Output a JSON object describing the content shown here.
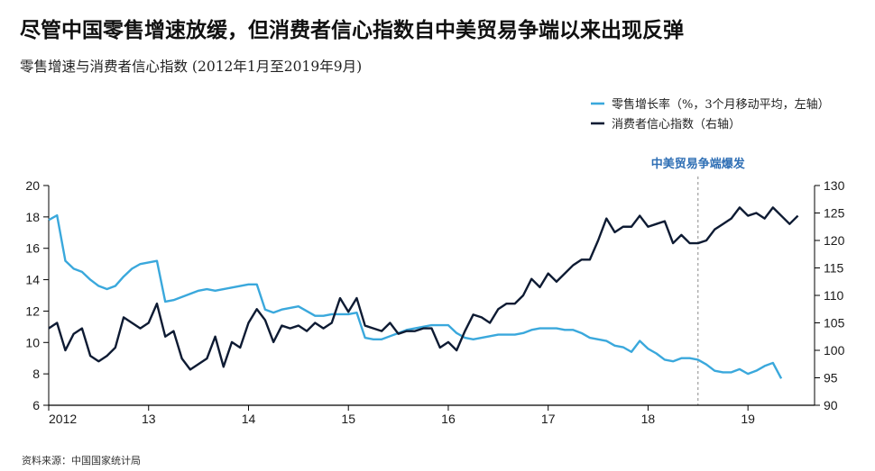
{
  "page": {
    "title": "尽管中国零售增速放缓，但消费者信心指数自中美贸易争端以来出现反弹",
    "subtitle": "零售增速与消费者信心指数 (2012年1月至2019年9月)",
    "source": "资料来源：中国国家统计局"
  },
  "chart_data": {
    "type": "line",
    "title": "尽管中国零售增速放缓，但消费者信心指数自中美贸易争端以来出现反弹",
    "subtitle": "零售增速与消费者信心指数 (2012年1月至2019年9月)",
    "x_start": "2012-01",
    "x_end": "2019-09",
    "x_ticks": [
      {
        "label": "2012",
        "year": 2012
      },
      {
        "label": "13",
        "year": 2013
      },
      {
        "label": "14",
        "year": 2014
      },
      {
        "label": "15",
        "year": 2015
      },
      {
        "label": "16",
        "year": 2016
      },
      {
        "label": "17",
        "year": 2017
      },
      {
        "label": "18",
        "year": 2018
      },
      {
        "label": "19",
        "year": 2019
      }
    ],
    "y_left": {
      "min": 6,
      "max": 20,
      "ticks": [
        6,
        8,
        10,
        12,
        14,
        16,
        18,
        20
      ]
    },
    "y_right": {
      "min": 90,
      "max": 130,
      "ticks": [
        90,
        95,
        100,
        105,
        110,
        115,
        120,
        125,
        130
      ]
    },
    "grid": false,
    "legend_position": "top-right",
    "annotation": {
      "label": "中美贸易争端爆发",
      "date": "2018-07"
    },
    "series": [
      {
        "name": "零售增长率（%，3个月移动平均，左轴）",
        "axis": "left",
        "color": "#3aa8dc",
        "values": [
          17.8,
          18.1,
          15.2,
          14.7,
          14.5,
          14.0,
          13.6,
          13.4,
          13.6,
          14.2,
          14.7,
          15.0,
          15.1,
          15.2,
          12.6,
          12.7,
          12.9,
          13.1,
          13.3,
          13.4,
          13.3,
          13.4,
          13.5,
          13.6,
          13.7,
          13.7,
          12.1,
          11.9,
          12.1,
          12.2,
          12.3,
          12.0,
          11.7,
          11.7,
          11.8,
          11.8,
          11.8,
          11.9,
          10.3,
          10.2,
          10.2,
          10.4,
          10.6,
          10.8,
          10.9,
          11.0,
          11.1,
          11.1,
          11.1,
          10.6,
          10.3,
          10.2,
          10.3,
          10.4,
          10.5,
          10.5,
          10.5,
          10.6,
          10.8,
          10.9,
          10.9,
          10.9,
          10.8,
          10.8,
          10.6,
          10.3,
          10.2,
          10.1,
          9.8,
          9.7,
          9.4,
          10.1,
          9.6,
          9.3,
          8.9,
          8.8,
          9.0,
          9.0,
          8.9,
          8.6,
          8.2,
          8.1,
          8.1,
          8.3,
          8.0,
          8.2,
          8.5,
          8.7,
          7.7
        ]
      },
      {
        "name": "消费者信心指数（右轴）",
        "axis": "right",
        "color": "#0e1b33",
        "values": [
          104.0,
          105.0,
          100.0,
          103.0,
          104.0,
          99.0,
          98.0,
          99.0,
          100.5,
          106.0,
          105.0,
          104.0,
          105.0,
          108.5,
          102.5,
          103.5,
          98.5,
          96.5,
          97.5,
          98.5,
          102.5,
          97.0,
          101.5,
          100.5,
          105.0,
          107.5,
          105.5,
          101.5,
          104.5,
          104.0,
          104.5,
          103.5,
          105.0,
          104.0,
          105.0,
          109.5,
          107.0,
          109.5,
          104.5,
          104.0,
          103.5,
          105.0,
          103.0,
          103.5,
          103.5,
          104.0,
          104.0,
          100.5,
          101.5,
          100.0,
          103.5,
          106.5,
          106.0,
          105.0,
          107.5,
          108.5,
          108.5,
          110.0,
          113.0,
          111.5,
          114.0,
          112.5,
          114.0,
          115.5,
          116.5,
          116.5,
          120.0,
          124.0,
          121.5,
          122.5,
          122.5,
          124.5,
          122.5,
          123.0,
          123.5,
          119.5,
          121.0,
          119.5,
          119.5,
          120.0,
          122.0,
          123.0,
          124.0,
          126.0,
          124.5,
          125.0,
          124.0,
          126.0,
          124.5,
          123.0,
          124.5
        ]
      }
    ]
  }
}
